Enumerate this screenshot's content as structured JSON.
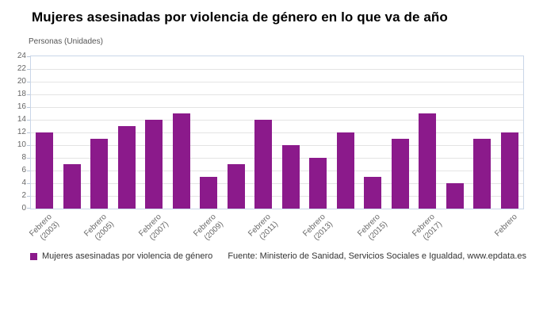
{
  "title": "Mujeres asesinadas por violencia de género en lo que va de año",
  "y_axis_label": "Personas (Unidades)",
  "legend": {
    "label": "Mujeres asesinadas por violencia de género",
    "color": "#8b1a8b"
  },
  "source": "Fuente: Ministerio de Sanidad, Servicios Sociales e Igualdad, www.epdata.es",
  "chart_data": {
    "type": "bar",
    "title": "Mujeres asesinadas por violencia de género en lo que va de año",
    "xlabel": "",
    "ylabel": "Personas (Unidades)",
    "ylim": [
      0,
      24
    ],
    "y_tick_step": 2,
    "grid": true,
    "bar_color": "#8b1a8b",
    "legend_position": "bottom-left",
    "categories": [
      "Febrero\n(2003)",
      "",
      "Febrero\n(2005)",
      "",
      "Febrero\n(2007)",
      "",
      "Febrero\n(2009)",
      "",
      "Febrero\n(2011)",
      "",
      "Febrero\n(2013)",
      "",
      "Febrero\n(2015)",
      "",
      "Febrero\n(2017)",
      "",
      "",
      "Febrero"
    ],
    "values": [
      12,
      7,
      11,
      13,
      14,
      15,
      5,
      7,
      14,
      10,
      8,
      12,
      5,
      11,
      15,
      4,
      11,
      12
    ]
  }
}
